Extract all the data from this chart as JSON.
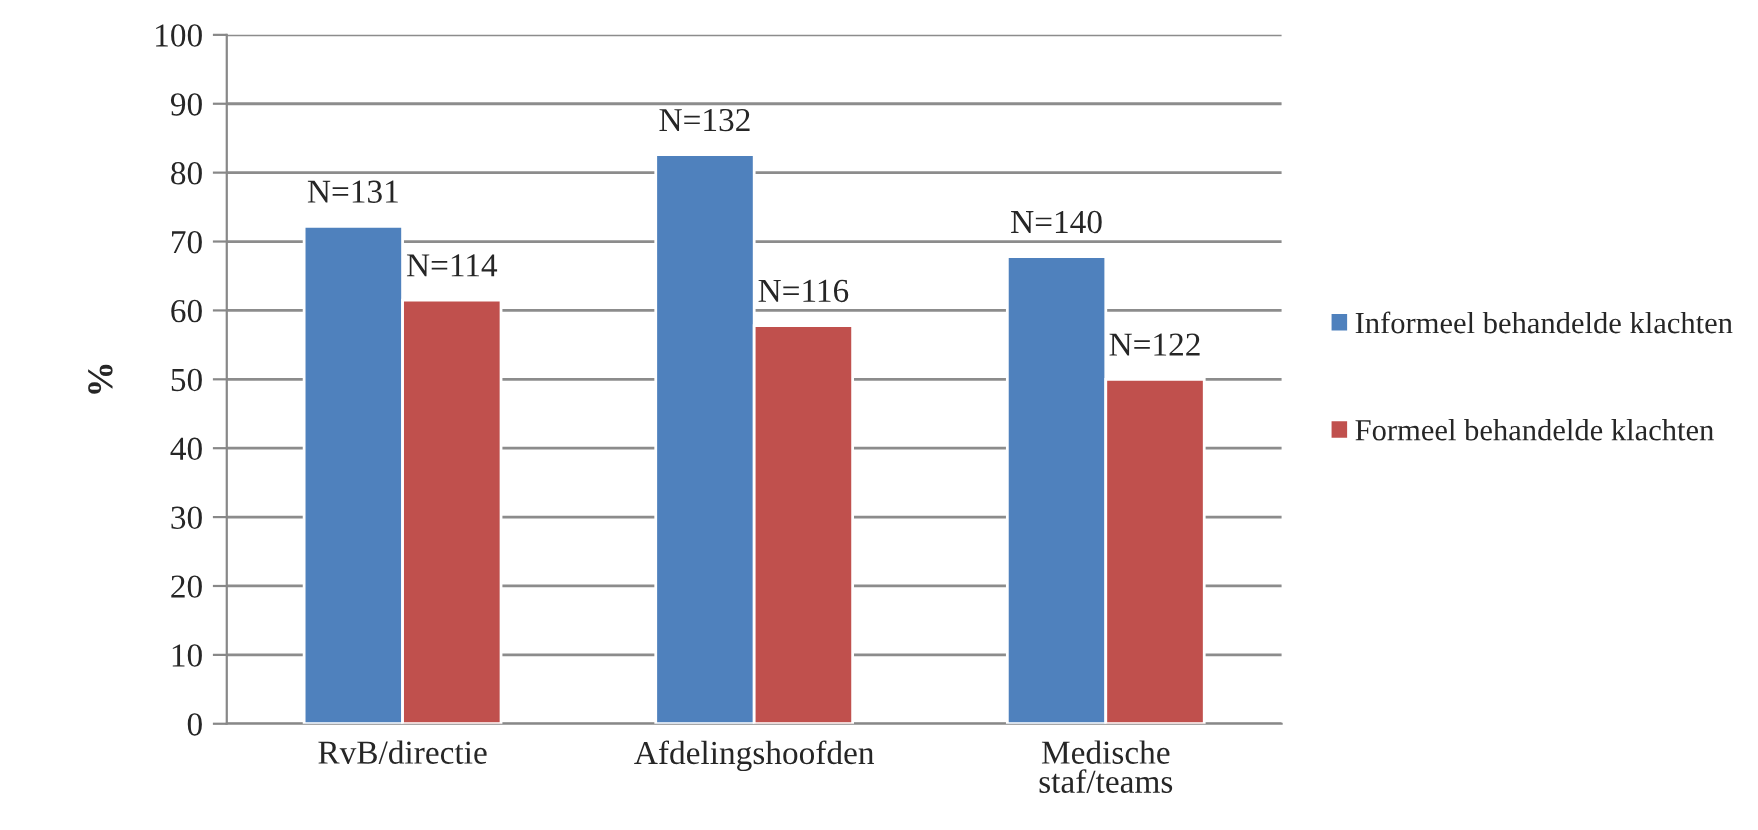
{
  "chart_data": {
    "type": "bar",
    "ylabel": "%",
    "categories": [
      "RvB/directie",
      "Afdelingshoofden",
      "Medische\nstaf/teams"
    ],
    "series": [
      {
        "name": "Informeel behandelde klachten",
        "color": "#4f81bd",
        "values": [
          72.2,
          82.6,
          67.8
        ]
      },
      {
        "name": "Formeel behandelde klachten",
        "color": "#c0504d",
        "values": [
          61.5,
          57.8,
          50
        ]
      }
    ],
    "annotations": [
      {
        "text": "N=131",
        "x": "RvB/directie",
        "y": 72.2
      },
      {
        "text": "N=132",
        "x": "Afdelingshoofden",
        "y": 82.6
      },
      {
        "text": "N=140",
        "x": "Medische\nstaf/teams",
        "y": 67.8
      },
      {
        "text": "N=114",
        "x": "RvB/directie",
        "y": 61.5
      },
      {
        "text": "N=116",
        "x": "Afdelingshoofden",
        "y": 57.8
      },
      {
        "text": "N=122",
        "x": "Medische\nstaf/teams",
        "y": 50
      }
    ],
    "ylim": [
      0,
      100
    ],
    "yticks": [
      0,
      10,
      20,
      30,
      40,
      50,
      60,
      70,
      80,
      90,
      100
    ],
    "grid": "y",
    "legend": "right"
  }
}
